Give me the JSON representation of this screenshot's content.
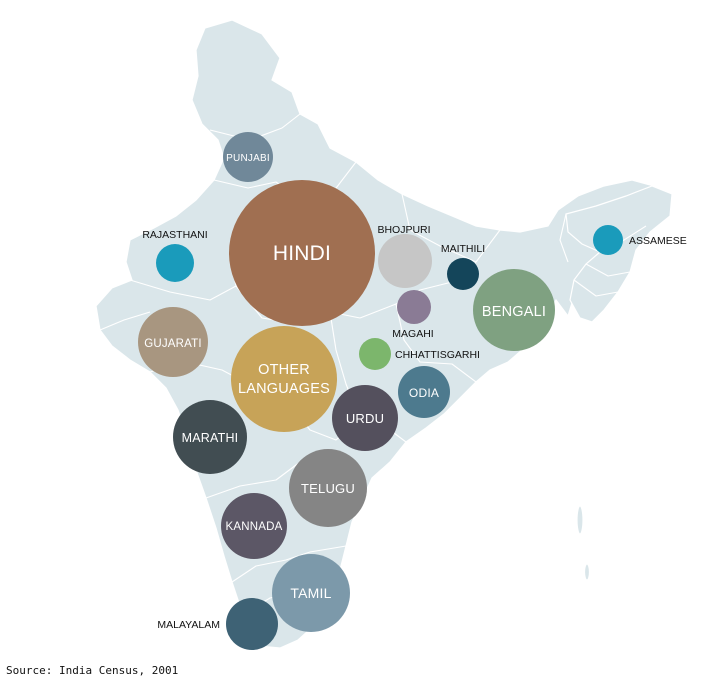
{
  "map": {
    "colors": {
      "land": "#dae6ea",
      "borders": "#ffffff"
    },
    "bubbles": [
      {
        "id": "hindi",
        "label": "HINDI",
        "color": "#a06f51",
        "label_position": "inside"
      },
      {
        "id": "other-languages",
        "label": "OTHER\nLANGUAGES",
        "color": "#c7a358",
        "label_position": "inside"
      },
      {
        "id": "bengali",
        "label": "BENGALI",
        "color": "#7fa181",
        "label_position": "inside"
      },
      {
        "id": "telugu",
        "label": "TELUGU",
        "color": "#858585",
        "label_position": "inside"
      },
      {
        "id": "tamil",
        "label": "TAMIL",
        "color": "#7c99aa",
        "label_position": "inside"
      },
      {
        "id": "marathi",
        "label": "MARATHI",
        "color": "#414d52",
        "label_position": "inside"
      },
      {
        "id": "gujarati",
        "label": "GUJARATI",
        "color": "#a89680",
        "label_position": "inside"
      },
      {
        "id": "urdu",
        "label": "URDU",
        "color": "#54505d",
        "label_position": "inside"
      },
      {
        "id": "kannada",
        "label": "KANNADA",
        "color": "#5c5766",
        "label_position": "inside"
      },
      {
        "id": "odia",
        "label": "ODIA",
        "color": "#4d7a8e",
        "label_position": "inside"
      },
      {
        "id": "punjabi",
        "label": "PUNJABI",
        "color": "#708899",
        "label_position": "inside"
      },
      {
        "id": "bhojpuri",
        "label": "BHOJPURI",
        "color": "#c6c6c6",
        "label_position": "outside"
      },
      {
        "id": "malayalam",
        "label": "MALAYALAM",
        "color": "#3e6275",
        "label_position": "outside"
      },
      {
        "id": "rajasthani",
        "label": "RAJASTHANI",
        "color": "#1a9bbb",
        "label_position": "outside"
      },
      {
        "id": "assamese",
        "label": "ASSAMESE",
        "color": "#1a9bbb",
        "label_position": "outside"
      },
      {
        "id": "maithili",
        "label": "MAITHILI",
        "color": "#14455a",
        "label_position": "outside"
      },
      {
        "id": "magahi",
        "label": "MAGAHI",
        "color": "#8a7b95",
        "label_position": "outside"
      },
      {
        "id": "chhattisgarhi",
        "label": "CHHATTISGARHI",
        "color": "#7cb66c",
        "label_position": "outside"
      }
    ]
  },
  "footer": {
    "source": "Source: India Census, 2001"
  }
}
